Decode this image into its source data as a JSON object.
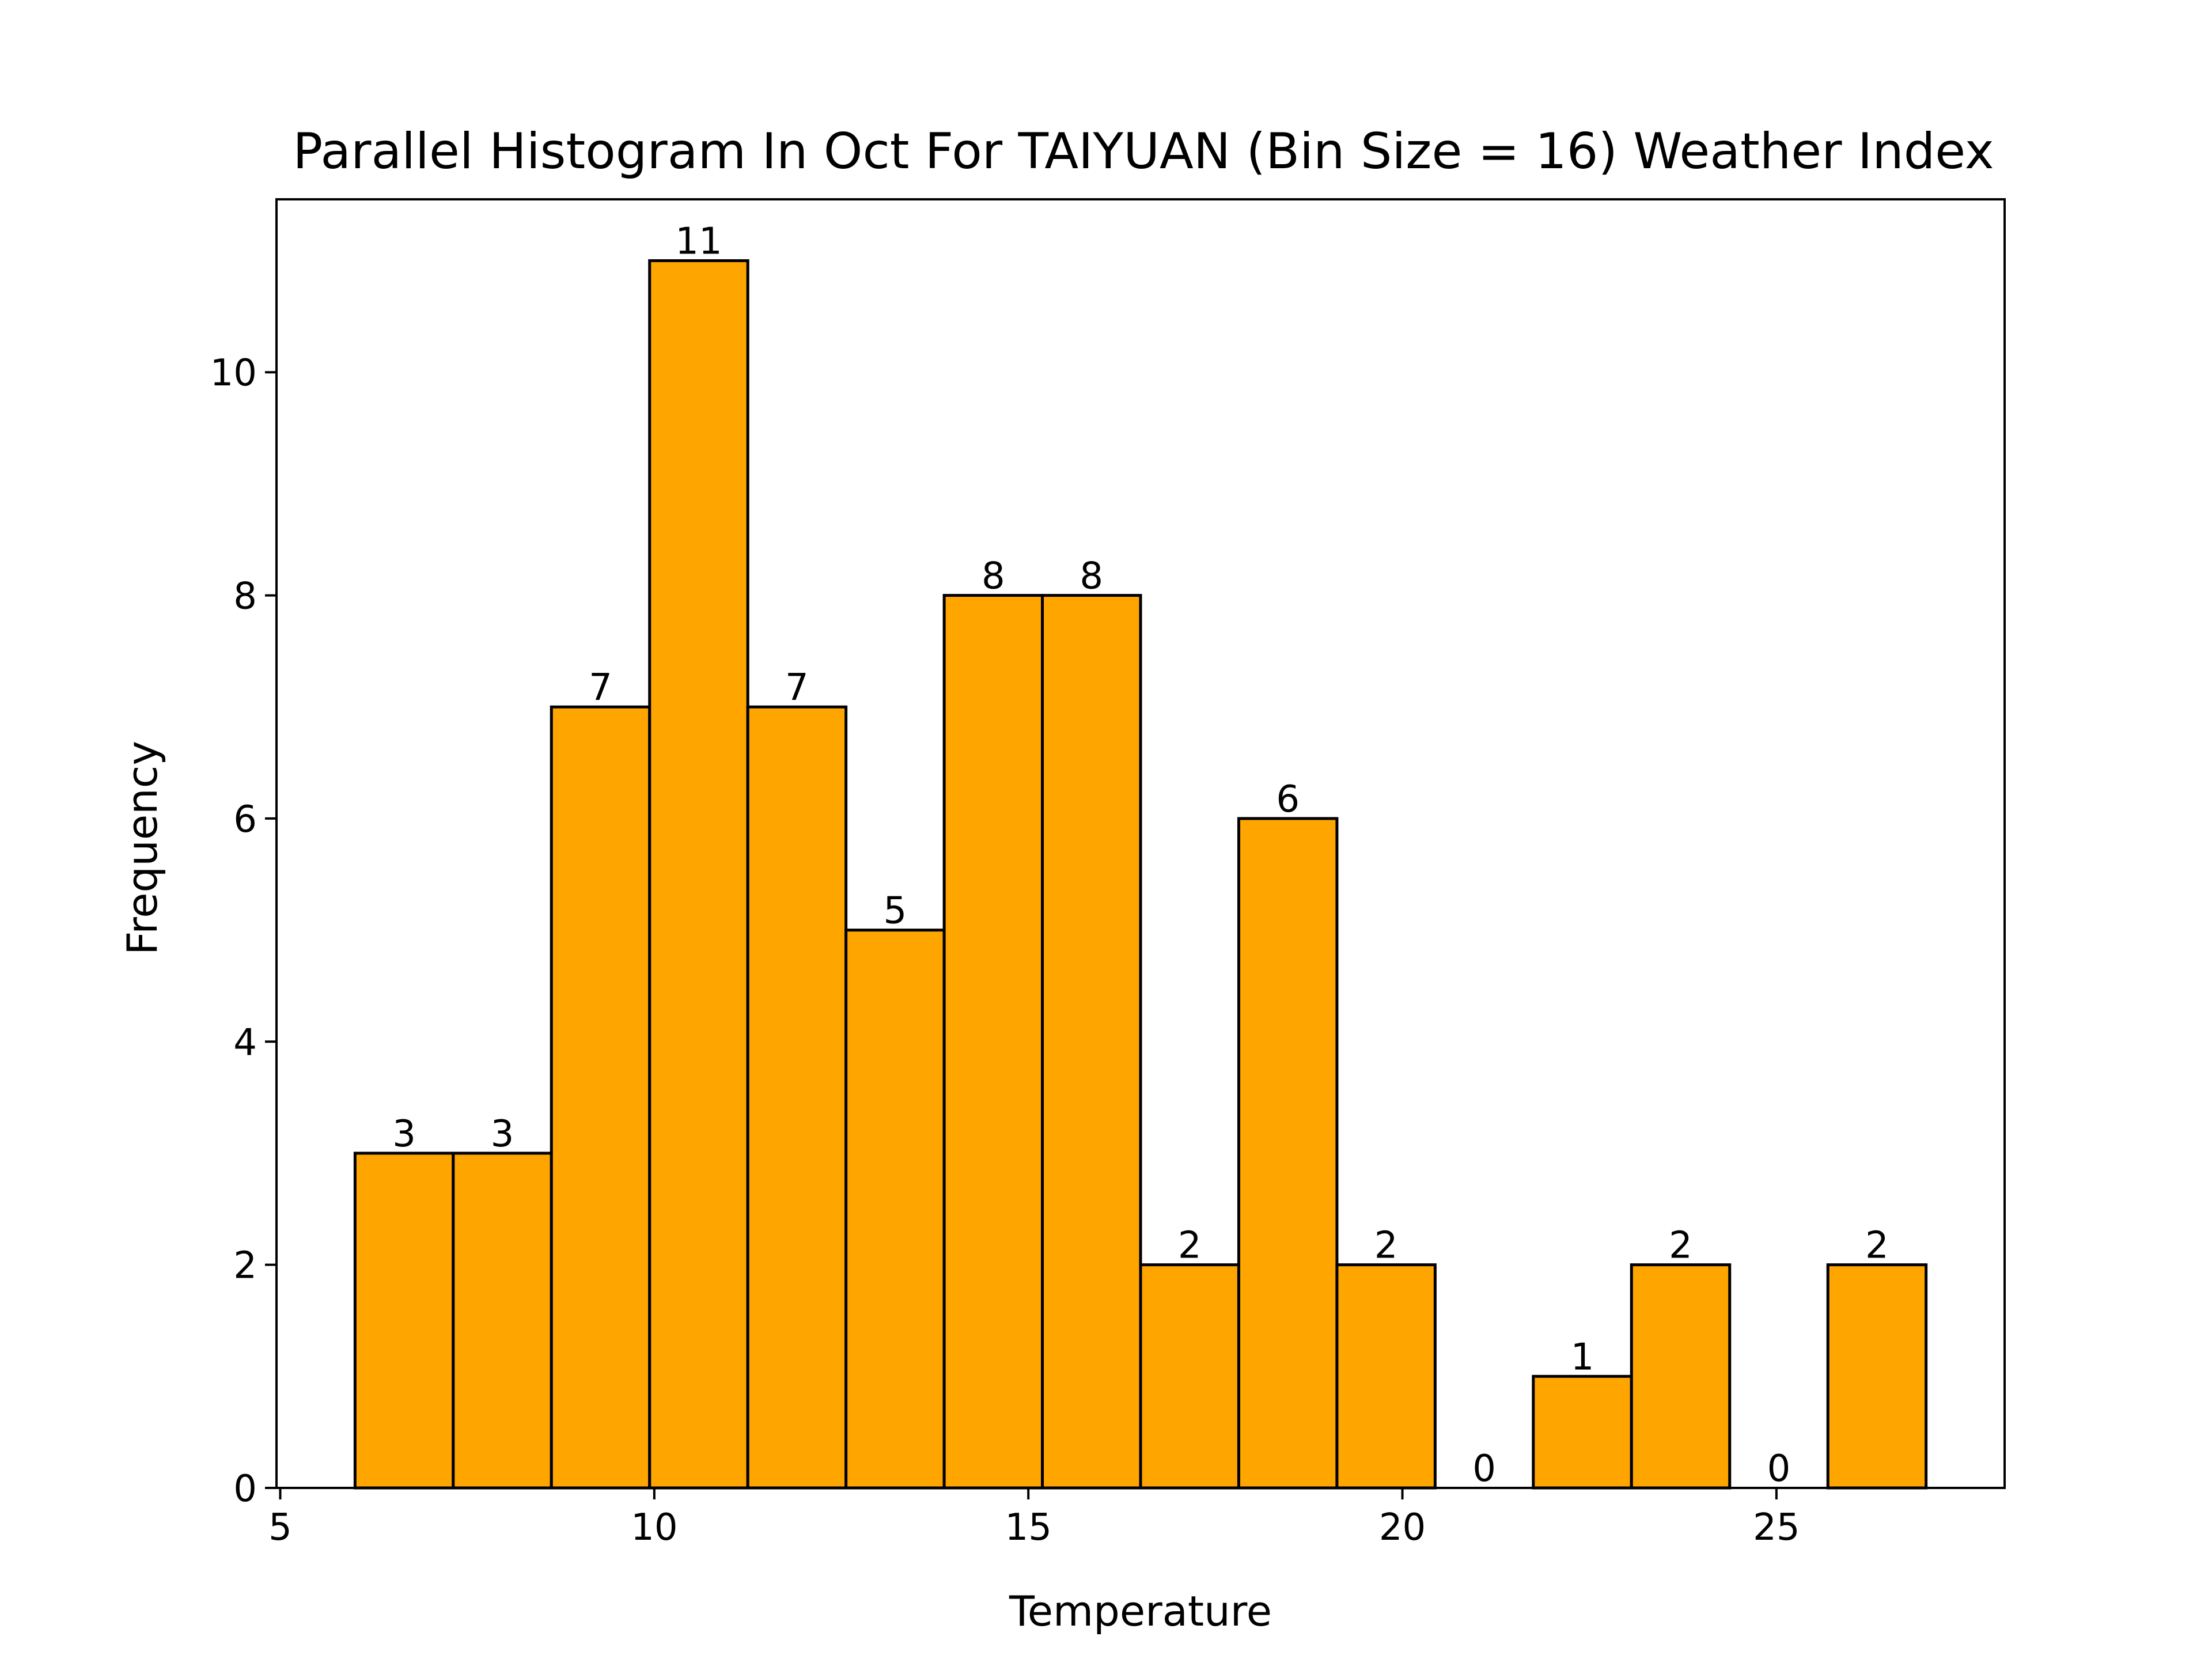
{
  "chart_data": {
    "type": "bar",
    "title": "Parallel Histogram In Oct For TAIYUAN (Bin Size = 16) Weather Index",
    "xlabel": "Temperature",
    "ylabel": "Frequency",
    "bin_edges": [
      6.0,
      7.3125,
      8.625,
      9.9375,
      11.25,
      12.5625,
      13.875,
      15.1875,
      16.5,
      17.8125,
      19.125,
      20.4375,
      21.75,
      23.0625,
      24.375,
      25.6875,
      27.0
    ],
    "values": [
      3,
      3,
      7,
      11,
      7,
      5,
      8,
      8,
      2,
      6,
      2,
      0,
      1,
      2,
      0,
      2
    ],
    "data_labels": [
      "3",
      "3",
      "7",
      "11",
      "7",
      "5",
      "8",
      "8",
      "2",
      "6",
      "2",
      "0",
      "1",
      "2",
      "0",
      "2"
    ],
    "xlim": [
      4.95,
      28.05
    ],
    "ylim": [
      0,
      11.55
    ],
    "xticks": [
      5,
      10,
      15,
      20,
      25
    ],
    "xtick_labels": [
      "5",
      "10",
      "15",
      "20",
      "25"
    ],
    "yticks": [
      0,
      2,
      4,
      6,
      8,
      10
    ],
    "ytick_labels": [
      "0",
      "2",
      "4",
      "6",
      "8",
      "10"
    ],
    "grid": false,
    "bar_color": "#FFA500",
    "edge_color": "#000000"
  }
}
